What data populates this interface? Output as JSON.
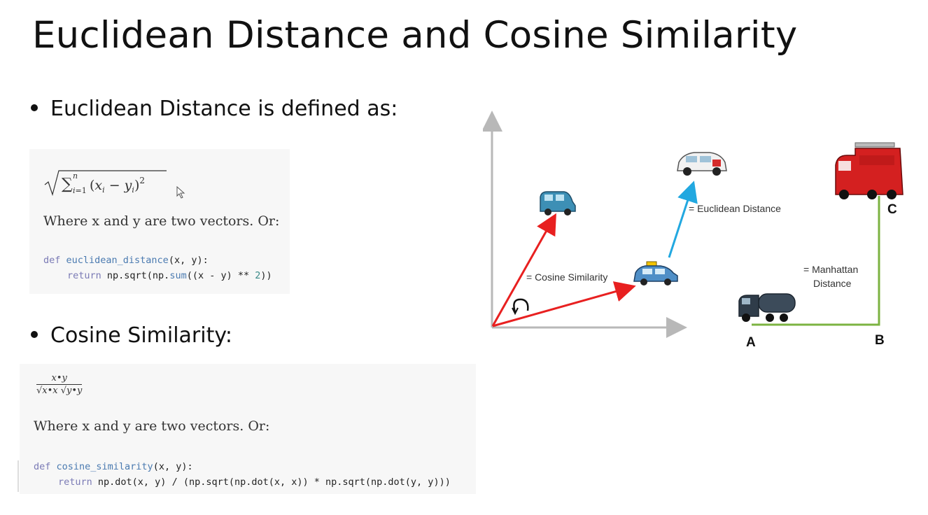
{
  "slide": {
    "title": "Euclidean Distance and Cosine Similarity"
  },
  "euclidean": {
    "bullet": "Euclidean Distance is defined as:",
    "formula_text": "√∑ⁿᵢ₌₁(xᵢ − yᵢ)²",
    "where": "Where x and y are two vectors. Or:",
    "code_def_kw": "def ",
    "code_def_name": "euclidean_distance",
    "code_def_args": "(x, y):",
    "code_ret_kw": "return ",
    "code_ret_a": "np.sqrt(np.",
    "code_ret_fn": "sum",
    "code_ret_b": "((x - y) ** ",
    "code_ret_num": "2",
    "code_ret_c": "))"
  },
  "cosine": {
    "bullet": "Cosine Similarity:",
    "frac_numerator": "x•y",
    "frac_denominator": "√x•x √y•y",
    "where": "Where x and y are two vectors. Or:",
    "code_def_kw": "def ",
    "code_def_name": "cosine_similarity",
    "code_def_args": "(x, y):",
    "code_ret_kw": "return ",
    "code_ret_body": "np.dot(x, y) / (np.sqrt(np.dot(x, x)) * np.sqrt(np.dot(y, y)))"
  },
  "diagram": {
    "label_euclidean": "= Euclidean Distance",
    "label_cosine": "= Cosine Similarity",
    "label_manhattan_1": "= Manhattan",
    "label_manhattan_2": "Distance",
    "point_a": "A",
    "point_b": "B",
    "point_c": "C",
    "colors": {
      "axis": "#b8b8b8",
      "cosine_arrow": "#e82020",
      "euclid_arrow": "#22a8e0",
      "manhattan": "#7cb342"
    }
  }
}
